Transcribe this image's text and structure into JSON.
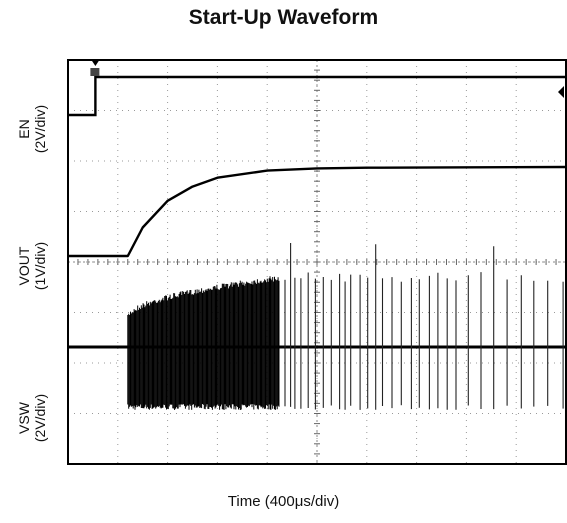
{
  "chart_data": {
    "type": "line",
    "title": "Start-Up Waveform",
    "xlabel": "Time (400μs/div)",
    "x_unit": "μs",
    "xlim": [
      0,
      4000
    ],
    "grid": true,
    "grid_divisions": {
      "x": 10,
      "y": 8
    },
    "channels": [
      {
        "name": "EN",
        "scale": "(2V/div)",
        "style": "step",
        "low_until_us": 220,
        "description_points": [
          [
            0,
            0
          ],
          [
            220,
            0
          ],
          [
            220,
            5
          ],
          [
            4000,
            5
          ]
        ]
      },
      {
        "name": "VOUT",
        "scale": "(1V/div)",
        "style": "soft-start ramp",
        "points": [
          [
            0,
            0
          ],
          [
            480,
            0
          ],
          [
            600,
            0.8
          ],
          [
            800,
            1.55
          ],
          [
            1000,
            1.95
          ],
          [
            1200,
            2.2
          ],
          [
            1600,
            2.4
          ],
          [
            2000,
            2.46
          ],
          [
            2400,
            2.48
          ],
          [
            4000,
            2.5
          ]
        ]
      },
      {
        "name": "VSW",
        "scale": "(2V/div)",
        "style": "switching node",
        "switching_start_us": 480,
        "dense_until_us": 1700,
        "burst_until_us": 4000
      }
    ],
    "markers": [
      "trigger-marker",
      "ground-marker"
    ]
  }
}
